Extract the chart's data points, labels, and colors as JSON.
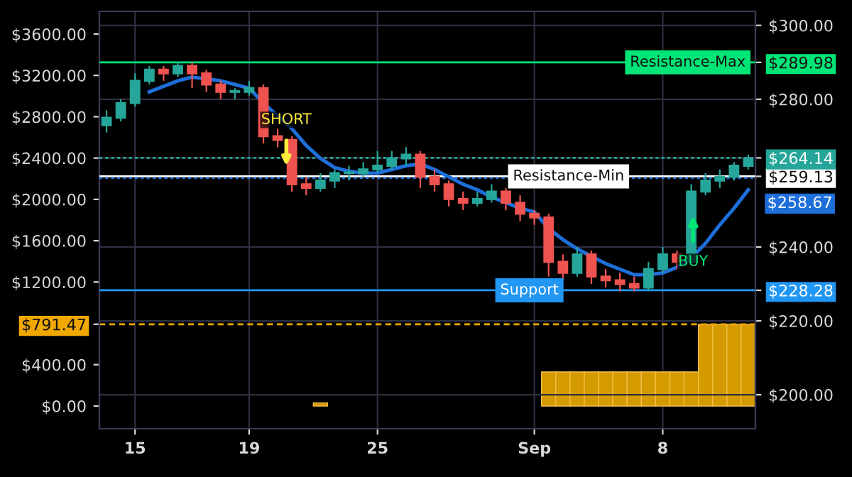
{
  "chart_data": {
    "type": "candlestick",
    "categories": [
      null,
      null,
      "15",
      null,
      null,
      null,
      null,
      null,
      null,
      null,
      "19",
      null,
      null,
      null,
      null,
      null,
      null,
      null,
      null,
      "25",
      null,
      null,
      null,
      null,
      null,
      null,
      null,
      null,
      null,
      null,
      "Sep",
      null,
      null,
      null,
      null,
      null,
      null,
      null,
      null,
      "8",
      null,
      null,
      null,
      null,
      null,
      null
    ],
    "ylim": [
      -220,
      3820
    ],
    "yticks": [
      {
        "value": 0,
        "label": "$0.00"
      },
      {
        "value": 400,
        "label": "$400.00"
      },
      {
        "value": 791.47,
        "label": "$791.47"
      },
      {
        "value": 1200,
        "label": "$1200.00"
      },
      {
        "value": 1600,
        "label": "$1600.00"
      },
      {
        "value": 2000,
        "label": "$2000.00"
      },
      {
        "value": 2400,
        "label": "$2400.00"
      },
      {
        "value": 2800,
        "label": "$2800.00"
      },
      {
        "value": 3200,
        "label": "$3200.00"
      },
      {
        "value": 3600,
        "label": "$3600.00"
      }
    ],
    "y2lim": [
      190.8,
      303.8
    ],
    "y2ticks": [
      {
        "value": 200,
        "label": "$200.00"
      },
      {
        "value": 220,
        "label": "$220.00"
      },
      {
        "value": 228.28,
        "label": "$228.28"
      },
      {
        "value": 240,
        "label": "$240.00"
      },
      {
        "value": 259.13,
        "label": "$259.13"
      },
      {
        "value": 264.14,
        "label": "$264.14"
      },
      {
        "value": 280,
        "label": "$280.00"
      },
      {
        "value": 289.98,
        "label": "$289.98"
      },
      {
        "value": 300,
        "label": "$300.00"
      }
    ],
    "grid": true,
    "series": [
      {
        "type": "bar",
        "axis": "y",
        "color": "#d49a00",
        "values": [
          null,
          null,
          null,
          null,
          null,
          null,
          null,
          null,
          null,
          null,
          null,
          null,
          null,
          null,
          null,
          30,
          null,
          null,
          null,
          null,
          null,
          null,
          null,
          null,
          null,
          null,
          null,
          null,
          null,
          null,
          null,
          330,
          330,
          330,
          330,
          330,
          330,
          330,
          330,
          330,
          330,
          330,
          790,
          790,
          790,
          790
        ]
      },
      {
        "axis": "y2",
        "ohlc": [
          [
            273,
            277,
            271,
            275
          ],
          [
            275,
            280,
            274,
            279
          ],
          [
            279,
            287,
            278,
            285
          ],
          [
            285,
            289,
            284,
            288
          ],
          [
            288,
            289,
            285,
            287
          ],
          [
            287,
            290,
            286,
            289
          ],
          [
            289,
            290,
            283,
            287
          ],
          [
            287,
            288,
            282,
            284
          ],
          [
            284,
            285,
            280,
            282
          ],
          [
            282,
            283,
            280,
            282
          ],
          [
            282,
            285,
            281,
            283
          ],
          [
            283,
            284,
            268,
            270
          ],
          [
            270,
            272,
            267,
            269
          ],
          [
            269,
            270,
            255,
            257
          ],
          [
            257,
            259,
            254,
            256
          ],
          [
            256,
            260,
            255,
            258
          ],
          [
            258,
            261,
            256,
            260
          ],
          [
            260,
            262,
            258,
            260
          ],
          [
            260,
            263,
            259,
            261
          ],
          [
            261,
            266,
            260,
            262
          ],
          [
            262,
            266,
            261,
            264
          ],
          [
            264,
            267,
            262,
            265
          ],
          [
            265,
            266,
            256,
            259
          ],
          [
            259,
            261,
            255,
            257
          ],
          [
            257,
            258,
            251,
            253
          ],
          [
            253,
            255,
            250,
            252
          ],
          [
            252,
            255,
            251,
            253
          ],
          [
            253,
            257,
            252,
            255
          ],
          [
            255,
            256,
            250,
            252
          ],
          [
            252,
            254,
            247,
            249
          ],
          [
            249,
            250,
            246,
            248
          ],
          [
            248,
            249,
            232,
            236
          ],
          [
            236,
            238,
            231,
            233
          ],
          [
            233,
            240,
            232,
            238
          ],
          [
            238,
            239,
            230,
            232
          ],
          [
            232,
            234,
            229,
            231
          ],
          [
            231,
            233,
            228,
            230
          ],
          [
            230,
            232,
            228,
            229
          ],
          [
            229,
            236,
            228,
            234
          ],
          [
            234,
            240,
            233,
            238
          ],
          [
            238,
            239,
            234,
            236
          ],
          [
            236,
            257,
            235,
            255
          ],
          [
            255,
            260,
            254,
            258
          ],
          [
            258,
            261,
            256,
            259
          ],
          [
            259,
            263,
            258,
            262
          ],
          [
            262,
            265,
            261,
            264
          ]
        ]
      },
      {
        "type": "line",
        "axis": "y2",
        "color": "#1e6fd9",
        "values": [
          null,
          null,
          null,
          282,
          283.5,
          285,
          286,
          285.5,
          285,
          284,
          283,
          279,
          275.5,
          272,
          267.5,
          264,
          261.5,
          260.5,
          260,
          260,
          261,
          262,
          262.5,
          261,
          259,
          257,
          255.5,
          253.5,
          252,
          250.5,
          249.5,
          245,
          242,
          239.5,
          237.5,
          235.5,
          234,
          232.5,
          232.5,
          233,
          234.5,
          237,
          241,
          246,
          250.5,
          255.5
        ]
      }
    ],
    "ref_lines": [
      {
        "axis": "y2",
        "value": 289.98,
        "label": "Resistance-Max",
        "color": "#00e676",
        "line_style": "solid"
      },
      {
        "axis": "y2",
        "value": 264.14,
        "color": "#26a69a",
        "line_style": "dotted"
      },
      {
        "axis": "y2",
        "value": 259.13,
        "label": "Resistance-Min",
        "color": "#ffffff",
        "line_style": "solid"
      },
      {
        "axis": "y2",
        "value": 258.67,
        "label": "$258.67",
        "color": "#1e6fd9",
        "line_style": "dotted"
      },
      {
        "axis": "y2",
        "value": 228.28,
        "label": "Support",
        "color": "#2196f3",
        "line_style": "solid"
      },
      {
        "axis": "y",
        "value": 791.47,
        "color": "#f0a800",
        "line_style": "dashed"
      }
    ],
    "annotations": [
      "SHORT",
      "BUY"
    ],
    "legend": false
  }
}
